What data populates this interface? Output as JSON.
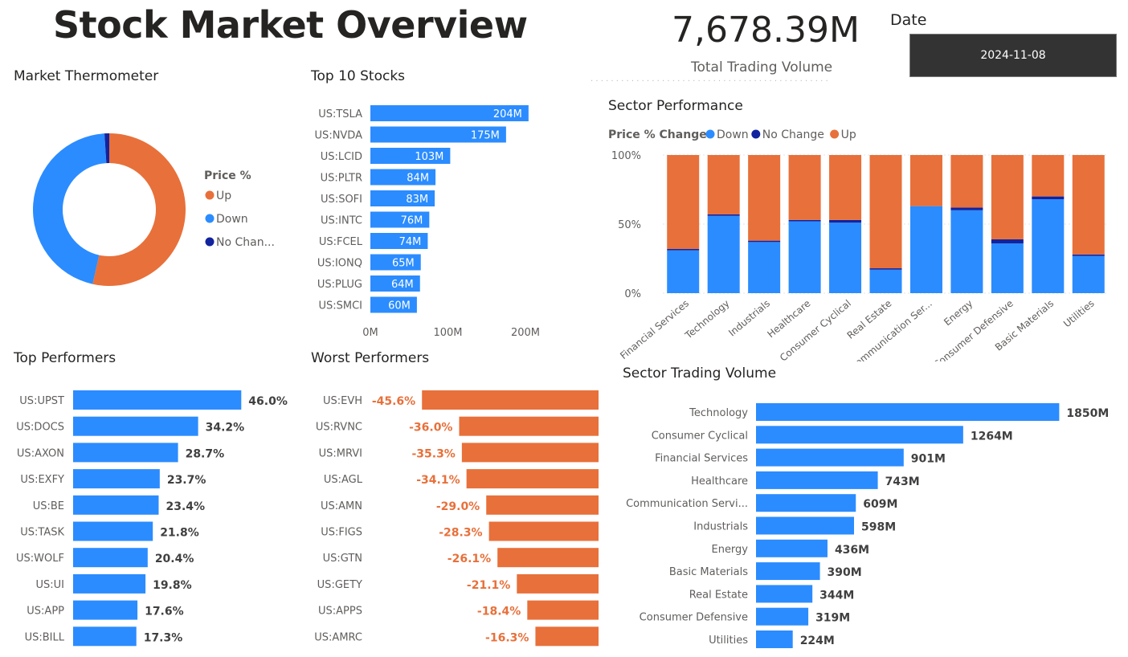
{
  "page": {
    "title": "Stock Market Overview",
    "kpi_value": "7,678.39M",
    "kpi_label": "Total Trading Volume",
    "date_label": "Date",
    "date_value": "2024-11-08"
  },
  "colors": {
    "blue": "#2b8cff",
    "orange": "#e8703a",
    "navy": "#12239e"
  },
  "chart_data": [
    {
      "id": "market-thermometer",
      "type": "pie",
      "title": "Market Thermometer",
      "legend_title": "Price %",
      "legend_position": "right",
      "slices": [
        {
          "name": "Up",
          "value": 53.5,
          "color": "#e8703a"
        },
        {
          "name": "Down",
          "value": 45.5,
          "color": "#2b8cff"
        },
        {
          "name": "No Chan...",
          "value": 1.0,
          "color": "#12239e"
        }
      ]
    },
    {
      "id": "top-10-stocks",
      "type": "bar",
      "title": "Top 10 Stocks",
      "categories": [
        "US:TSLA",
        "US:NVDA",
        "US:LCID",
        "US:PLTR",
        "US:SOFI",
        "US:INTC",
        "US:FCEL",
        "US:IONQ",
        "US:PLUG",
        "US:SMCI"
      ],
      "values": [
        204,
        175,
        103,
        84,
        83,
        76,
        74,
        65,
        64,
        60
      ],
      "labels": [
        "204M",
        "175M",
        "103M",
        "84M",
        "83M",
        "76M",
        "74M",
        "65M",
        "64M",
        "60M"
      ],
      "xlim": [
        0,
        220
      ],
      "xticks": [
        0,
        100,
        200
      ],
      "xtick_labels": [
        "0M",
        "100M",
        "200M"
      ]
    },
    {
      "id": "sector-performance",
      "type": "bar",
      "stacked": true,
      "percent": true,
      "title": "Sector Performance",
      "legend_title": "Price % Change",
      "legend_position": "top-left",
      "categories": [
        "Financial Services",
        "Technology",
        "Industrials",
        "Healthcare",
        "Consumer Cyclical",
        "Real Estate",
        "Communication Ser...",
        "Energy",
        "Consumer Defensive",
        "Basic Materials",
        "Utilities"
      ],
      "series": [
        {
          "name": "Down",
          "color": "#2b8cff",
          "values": [
            31,
            56,
            37,
            52,
            51,
            17,
            63,
            60,
            36,
            68,
            27
          ]
        },
        {
          "name": "No Change",
          "color": "#12239e",
          "values": [
            1,
            1,
            1,
            1,
            2,
            1,
            0,
            2,
            3,
            2,
            1
          ]
        },
        {
          "name": "Up",
          "color": "#e8703a",
          "values": [
            68,
            43,
            62,
            47,
            47,
            82,
            37,
            38,
            61,
            30,
            72
          ]
        }
      ],
      "ylim": [
        0,
        100
      ],
      "yticks": [
        0,
        50,
        100
      ],
      "ytick_labels": [
        "0%",
        "50%",
        "100%"
      ]
    },
    {
      "id": "top-performers",
      "type": "bar",
      "title": "Top Performers",
      "categories": [
        "US:UPST",
        "US:DOCS",
        "US:AXON",
        "US:EXFY",
        "US:BE",
        "US:TASK",
        "US:WOLF",
        "US:UI",
        "US:APP",
        "US:BILL"
      ],
      "values": [
        46.0,
        34.2,
        28.7,
        23.7,
        23.4,
        21.8,
        20.4,
        19.8,
        17.6,
        17.3
      ],
      "labels": [
        "46.0%",
        "34.2%",
        "28.7%",
        "23.7%",
        "23.4%",
        "21.8%",
        "20.4%",
        "19.8%",
        "17.6%",
        "17.3%"
      ]
    },
    {
      "id": "worst-performers",
      "type": "bar",
      "title": "Worst Performers",
      "categories": [
        "US:EVH",
        "US:RVNC",
        "US:MRVI",
        "US:AGL",
        "US:AMN",
        "US:FIGS",
        "US:GTN",
        "US:GETY",
        "US:APPS",
        "US:AMRC"
      ],
      "values": [
        -45.6,
        -36.0,
        -35.3,
        -34.1,
        -29.0,
        -28.3,
        -26.1,
        -21.1,
        -18.4,
        -16.3
      ],
      "labels": [
        "-45.6%",
        "-36.0%",
        "-35.3%",
        "-34.1%",
        "-29.0%",
        "-28.3%",
        "-26.1%",
        "-21.1%",
        "-18.4%",
        "-16.3%"
      ]
    },
    {
      "id": "sector-trading-volume",
      "type": "bar",
      "title": "Sector Trading Volume",
      "categories": [
        "Technology",
        "Consumer Cyclical",
        "Financial Services",
        "Healthcare",
        "Communication Servi...",
        "Industrials",
        "Energy",
        "Basic Materials",
        "Real Estate",
        "Consumer Defensive",
        "Utilities"
      ],
      "values": [
        1850,
        1264,
        901,
        743,
        609,
        598,
        436,
        390,
        344,
        319,
        224
      ],
      "labels": [
        "1850M",
        "1264M",
        "901M",
        "743M",
        "609M",
        "598M",
        "436M",
        "390M",
        "344M",
        "319M",
        "224M"
      ]
    }
  ]
}
